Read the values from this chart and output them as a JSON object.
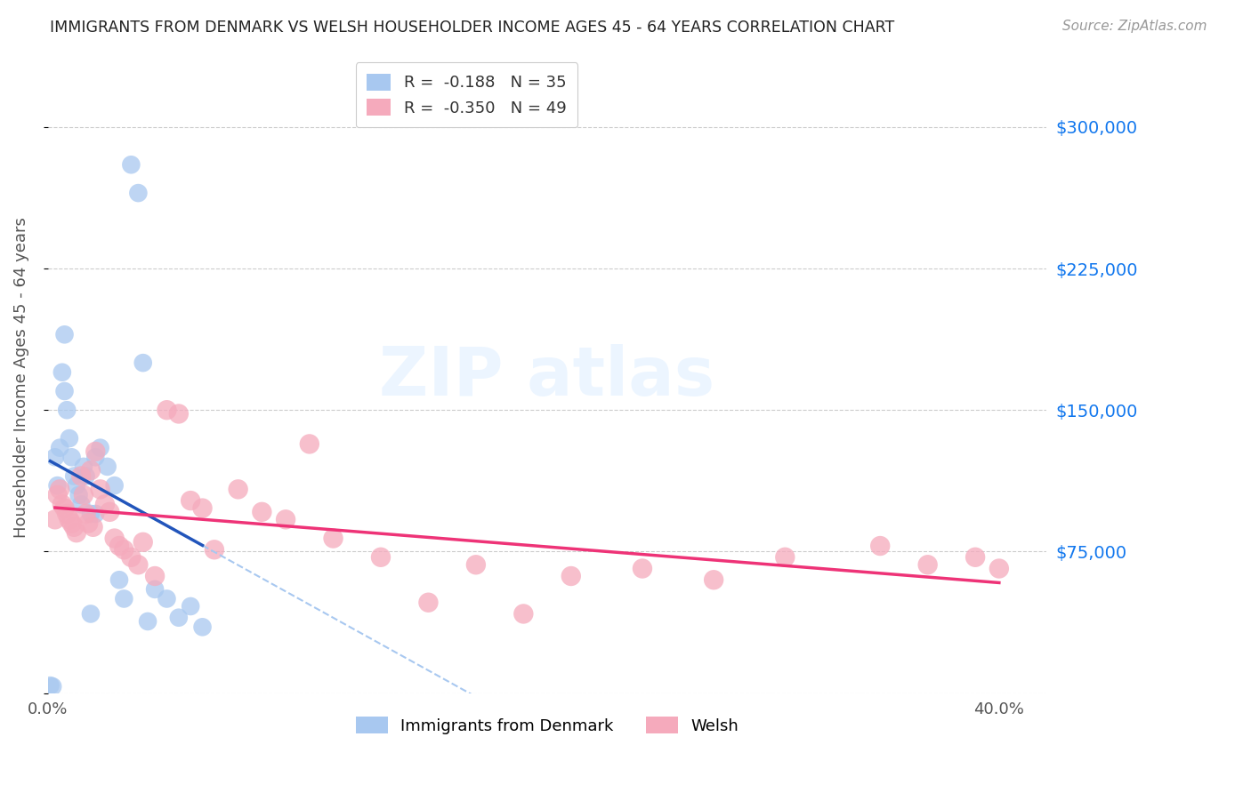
{
  "title": "IMMIGRANTS FROM DENMARK VS WELSH HOUSEHOLDER INCOME AGES 45 - 64 YEARS CORRELATION CHART",
  "source": "Source: ZipAtlas.com",
  "ylabel": "Householder Income Ages 45 - 64 years",
  "legend_labels": [
    "Immigrants from Denmark",
    "Welsh"
  ],
  "legend_R": [
    "-0.188",
    "-0.350"
  ],
  "legend_N": [
    "35",
    "49"
  ],
  "blue_color": "#A8C8F0",
  "pink_color": "#F5AABC",
  "trend_blue": "#2255BB",
  "trend_pink": "#EE3377",
  "xlim": [
    0.0,
    0.42
  ],
  "ylim": [
    0,
    335000
  ],
  "yticks": [
    0,
    75000,
    150000,
    225000,
    300000
  ],
  "ytick_labels": [
    "",
    "$75,000",
    "$150,000",
    "$225,000",
    "$300,000"
  ],
  "blue_x": [
    0.001,
    0.002,
    0.003,
    0.004,
    0.005,
    0.006,
    0.007,
    0.008,
    0.009,
    0.01,
    0.011,
    0.012,
    0.013,
    0.014,
    0.015,
    0.016,
    0.018,
    0.02,
    0.022,
    0.025,
    0.028,
    0.03,
    0.032,
    0.035,
    0.038,
    0.04,
    0.042,
    0.045,
    0.05,
    0.055,
    0.06,
    0.065,
    0.007,
    0.02,
    0.018
  ],
  "blue_y": [
    4000,
    3500,
    125000,
    110000,
    130000,
    170000,
    160000,
    150000,
    135000,
    125000,
    115000,
    110000,
    105000,
    100000,
    120000,
    115000,
    95000,
    125000,
    130000,
    120000,
    110000,
    60000,
    50000,
    280000,
    265000,
    175000,
    38000,
    55000,
    50000,
    40000,
    46000,
    35000,
    190000,
    95000,
    42000
  ],
  "pink_x": [
    0.003,
    0.004,
    0.005,
    0.006,
    0.007,
    0.008,
    0.009,
    0.01,
    0.011,
    0.012,
    0.014,
    0.015,
    0.016,
    0.017,
    0.018,
    0.019,
    0.02,
    0.022,
    0.024,
    0.026,
    0.028,
    0.03,
    0.032,
    0.035,
    0.038,
    0.04,
    0.045,
    0.05,
    0.055,
    0.06,
    0.065,
    0.07,
    0.08,
    0.09,
    0.1,
    0.11,
    0.12,
    0.14,
    0.16,
    0.18,
    0.2,
    0.22,
    0.25,
    0.28,
    0.31,
    0.35,
    0.37,
    0.39,
    0.4
  ],
  "pink_y": [
    92000,
    105000,
    108000,
    100000,
    98000,
    95000,
    92000,
    90000,
    88000,
    85000,
    115000,
    105000,
    95000,
    90000,
    118000,
    88000,
    128000,
    108000,
    100000,
    96000,
    82000,
    78000,
    76000,
    72000,
    68000,
    80000,
    62000,
    150000,
    148000,
    102000,
    98000,
    76000,
    108000,
    96000,
    92000,
    132000,
    82000,
    72000,
    48000,
    68000,
    42000,
    62000,
    66000,
    60000,
    72000,
    78000,
    68000,
    72000,
    66000
  ]
}
